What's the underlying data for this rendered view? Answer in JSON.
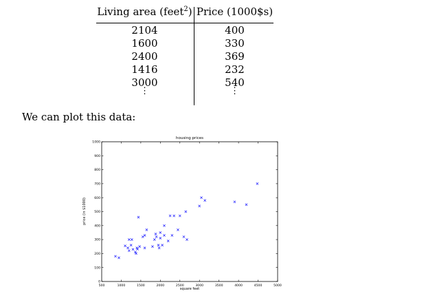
{
  "table": {
    "headers": {
      "left_text": "Living area (feet",
      "left_sup": "2",
      "left_close": ")",
      "right": "Price (1000$s)"
    },
    "rows": [
      [
        "2104",
        "400"
      ],
      [
        "1600",
        "330"
      ],
      [
        "2400",
        "369"
      ],
      [
        "1416",
        "232"
      ],
      [
        "3000",
        "540"
      ]
    ],
    "continuation": "⋮"
  },
  "paragraph": "We can plot this data:",
  "chart_data": {
    "type": "scatter",
    "title": "housing prices",
    "xlabel": "square feet",
    "ylabel": "price (in $1000)",
    "xlim": [
      500,
      5000
    ],
    "ylim": [
      0,
      1000
    ],
    "xticks": [
      "500",
      "1000",
      "1500",
      "2000",
      "2500",
      "3000",
      "3500",
      "4000",
      "4500",
      "5000"
    ],
    "yticks": [
      "0",
      "100",
      "200",
      "300",
      "400",
      "500",
      "600",
      "700",
      "800",
      "900",
      "1000"
    ],
    "marker": "x",
    "color": "#1a1aff",
    "points": [
      [
        852,
        180
      ],
      [
        940,
        170
      ],
      [
        1100,
        255
      ],
      [
        1170,
        240
      ],
      [
        1200,
        300
      ],
      [
        1200,
        220
      ],
      [
        1250,
        260
      ],
      [
        1270,
        300
      ],
      [
        1300,
        230
      ],
      [
        1360,
        210
      ],
      [
        1380,
        200
      ],
      [
        1400,
        240
      ],
      [
        1416,
        232
      ],
      [
        1440,
        460
      ],
      [
        1470,
        250
      ],
      [
        1550,
        320
      ],
      [
        1600,
        330
      ],
      [
        1600,
        240
      ],
      [
        1650,
        370
      ],
      [
        1800,
        250
      ],
      [
        1850,
        300
      ],
      [
        1880,
        340
      ],
      [
        1900,
        320
      ],
      [
        1950,
        260
      ],
      [
        1970,
        240
      ],
      [
        2000,
        350
      ],
      [
        2000,
        310
      ],
      [
        2050,
        260
      ],
      [
        2100,
        330
      ],
      [
        2100,
        400
      ],
      [
        2200,
        290
      ],
      [
        2250,
        470
      ],
      [
        2300,
        330
      ],
      [
        2350,
        470
      ],
      [
        2450,
        370
      ],
      [
        2500,
        470
      ],
      [
        2600,
        320
      ],
      [
        2650,
        500
      ],
      [
        2680,
        300
      ],
      [
        3000,
        540
      ],
      [
        3050,
        600
      ],
      [
        3140,
        580
      ],
      [
        3900,
        570
      ],
      [
        4200,
        550
      ],
      [
        4480,
        700
      ]
    ]
  }
}
